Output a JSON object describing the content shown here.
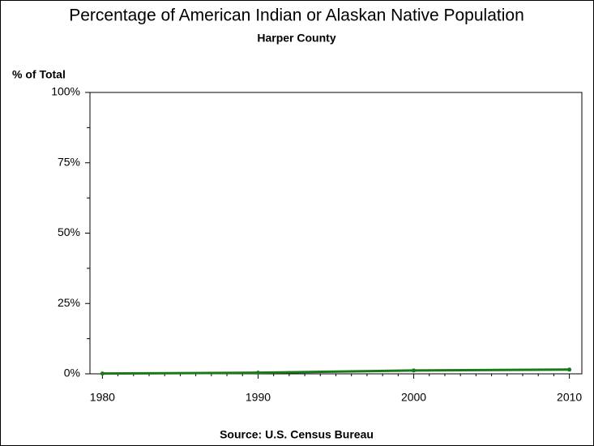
{
  "chart_data": {
    "type": "line",
    "title": "Percentage of American Indian or Alaskan Native Population",
    "subtitle": "Harper County",
    "y_label": "% of Total",
    "source": "Source: U.S. Census Bureau",
    "x": [
      1980,
      1990,
      2000,
      2010
    ],
    "series": [
      {
        "color": "#1a7a1a",
        "values": [
          0.1,
          0.4,
          1.2,
          1.5
        ]
      }
    ],
    "xlim": [
      1979.2,
      2010.8
    ],
    "xticks": [
      1980,
      1990,
      2000,
      2010
    ],
    "xminorticks": [
      1981,
      1982,
      1983,
      1984,
      1985,
      1986,
      1987,
      1988,
      1989,
      1991,
      1992,
      1993,
      1994,
      1995,
      1996,
      1997,
      1998,
      1999,
      2001,
      2002,
      2003,
      2004,
      2005,
      2006,
      2007,
      2008,
      2009
    ],
    "ylim": [
      0,
      100
    ],
    "yticks": [
      {
        "value": 0,
        "label": "0%"
      },
      {
        "value": 25,
        "label": "25%"
      },
      {
        "value": 50,
        "label": "50%"
      },
      {
        "value": 75,
        "label": "75%"
      },
      {
        "value": 100,
        "label": "100%"
      }
    ],
    "yminorticks": [
      12.5,
      37.5,
      62.5,
      87.5
    ]
  }
}
